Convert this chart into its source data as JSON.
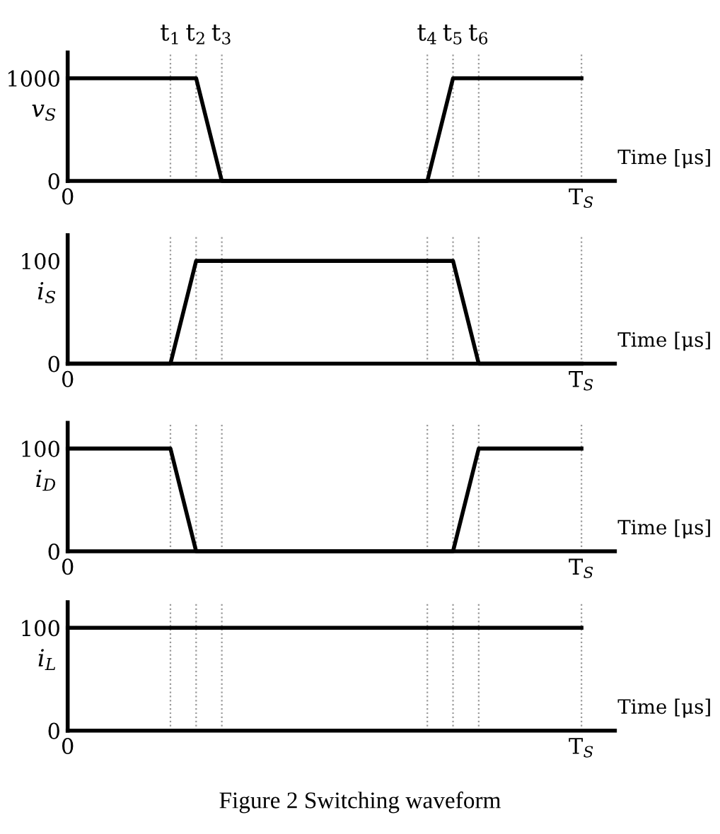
{
  "chart_data": [
    {
      "type": "line",
      "ylabel": "v$_{S}$",
      "xlabel": "Time [μs]",
      "categories": [
        "0",
        null,
        null,
        null,
        "t$_{1}$",
        "t$_{2}$",
        "t$_{3}$",
        null,
        null,
        null,
        null,
        null,
        null,
        null,
        "t$_{4}$",
        "t$_{5}$",
        "t$_{6}$",
        null,
        null,
        null,
        "T$_{S}$"
      ],
      "series": [
        {
          "color": "#000000",
          "values": [
            1000,
            1000,
            1000,
            1000,
            1000,
            1000,
            0,
            0,
            0,
            0,
            0,
            0,
            0,
            0,
            0,
            1000,
            1000,
            1000,
            1000,
            1000,
            1000
          ]
        }
      ],
      "ylim": [
        0,
        1250
      ],
      "yticks": [
        0,
        1000
      ],
      "grid": "x",
      "line_style": "solid"
    },
    {
      "type": "line",
      "ylabel": "i$_{S}$",
      "xlabel": "Time [μs]",
      "categories": [
        "0",
        null,
        null,
        null,
        null,
        null,
        null,
        null,
        null,
        null,
        null,
        null,
        null,
        null,
        null,
        null,
        null,
        null,
        null,
        null,
        "T$_{S}$"
      ],
      "series": [
        {
          "color": "#000000",
          "values": [
            0,
            0,
            0,
            0,
            0,
            100,
            100,
            100,
            100,
            100,
            100,
            100,
            100,
            100,
            100,
            100,
            0,
            0,
            0,
            0,
            0
          ]
        }
      ],
      "ylim": [
        0,
        125
      ],
      "yticks": [
        0,
        100
      ],
      "grid": "x",
      "line_style": "solid"
    },
    {
      "type": "line",
      "ylabel": "i$_{D}$",
      "xlabel": "Time [μs]",
      "categories": [
        "0",
        null,
        null,
        null,
        null,
        null,
        null,
        null,
        null,
        null,
        null,
        null,
        null,
        null,
        null,
        null,
        null,
        null,
        null,
        null,
        "T$_{S}$"
      ],
      "series": [
        {
          "color": "#000000",
          "values": [
            100,
            100,
            100,
            100,
            100,
            0,
            0,
            0,
            0,
            0,
            0,
            0,
            0,
            0,
            0,
            0,
            100,
            100,
            100,
            100,
            100
          ]
        }
      ],
      "ylim": [
        0,
        125
      ],
      "yticks": [
        0,
        100
      ],
      "grid": "x",
      "line_style": "solid"
    },
    {
      "type": "line",
      "ylabel": "i$_{L}$",
      "xlabel": "Time [μs]",
      "categories": [
        "0",
        null,
        null,
        null,
        null,
        null,
        null,
        null,
        null,
        null,
        null,
        null,
        null,
        null,
        null,
        null,
        null,
        null,
        null,
        null,
        "T$_{S}$"
      ],
      "series": [
        {
          "color": "#000000",
          "values": [
            100,
            100,
            100,
            100,
            100,
            100,
            100,
            100,
            100,
            100,
            100,
            100,
            100,
            100,
            100,
            100,
            100,
            100,
            100,
            100,
            100
          ]
        }
      ],
      "ylim": [
        0,
        125
      ],
      "yticks": [
        0,
        100
      ],
      "grid": "x",
      "line_style": "solid",
      "annotations": [
        "Figure 2 Switching waveform"
      ]
    }
  ]
}
